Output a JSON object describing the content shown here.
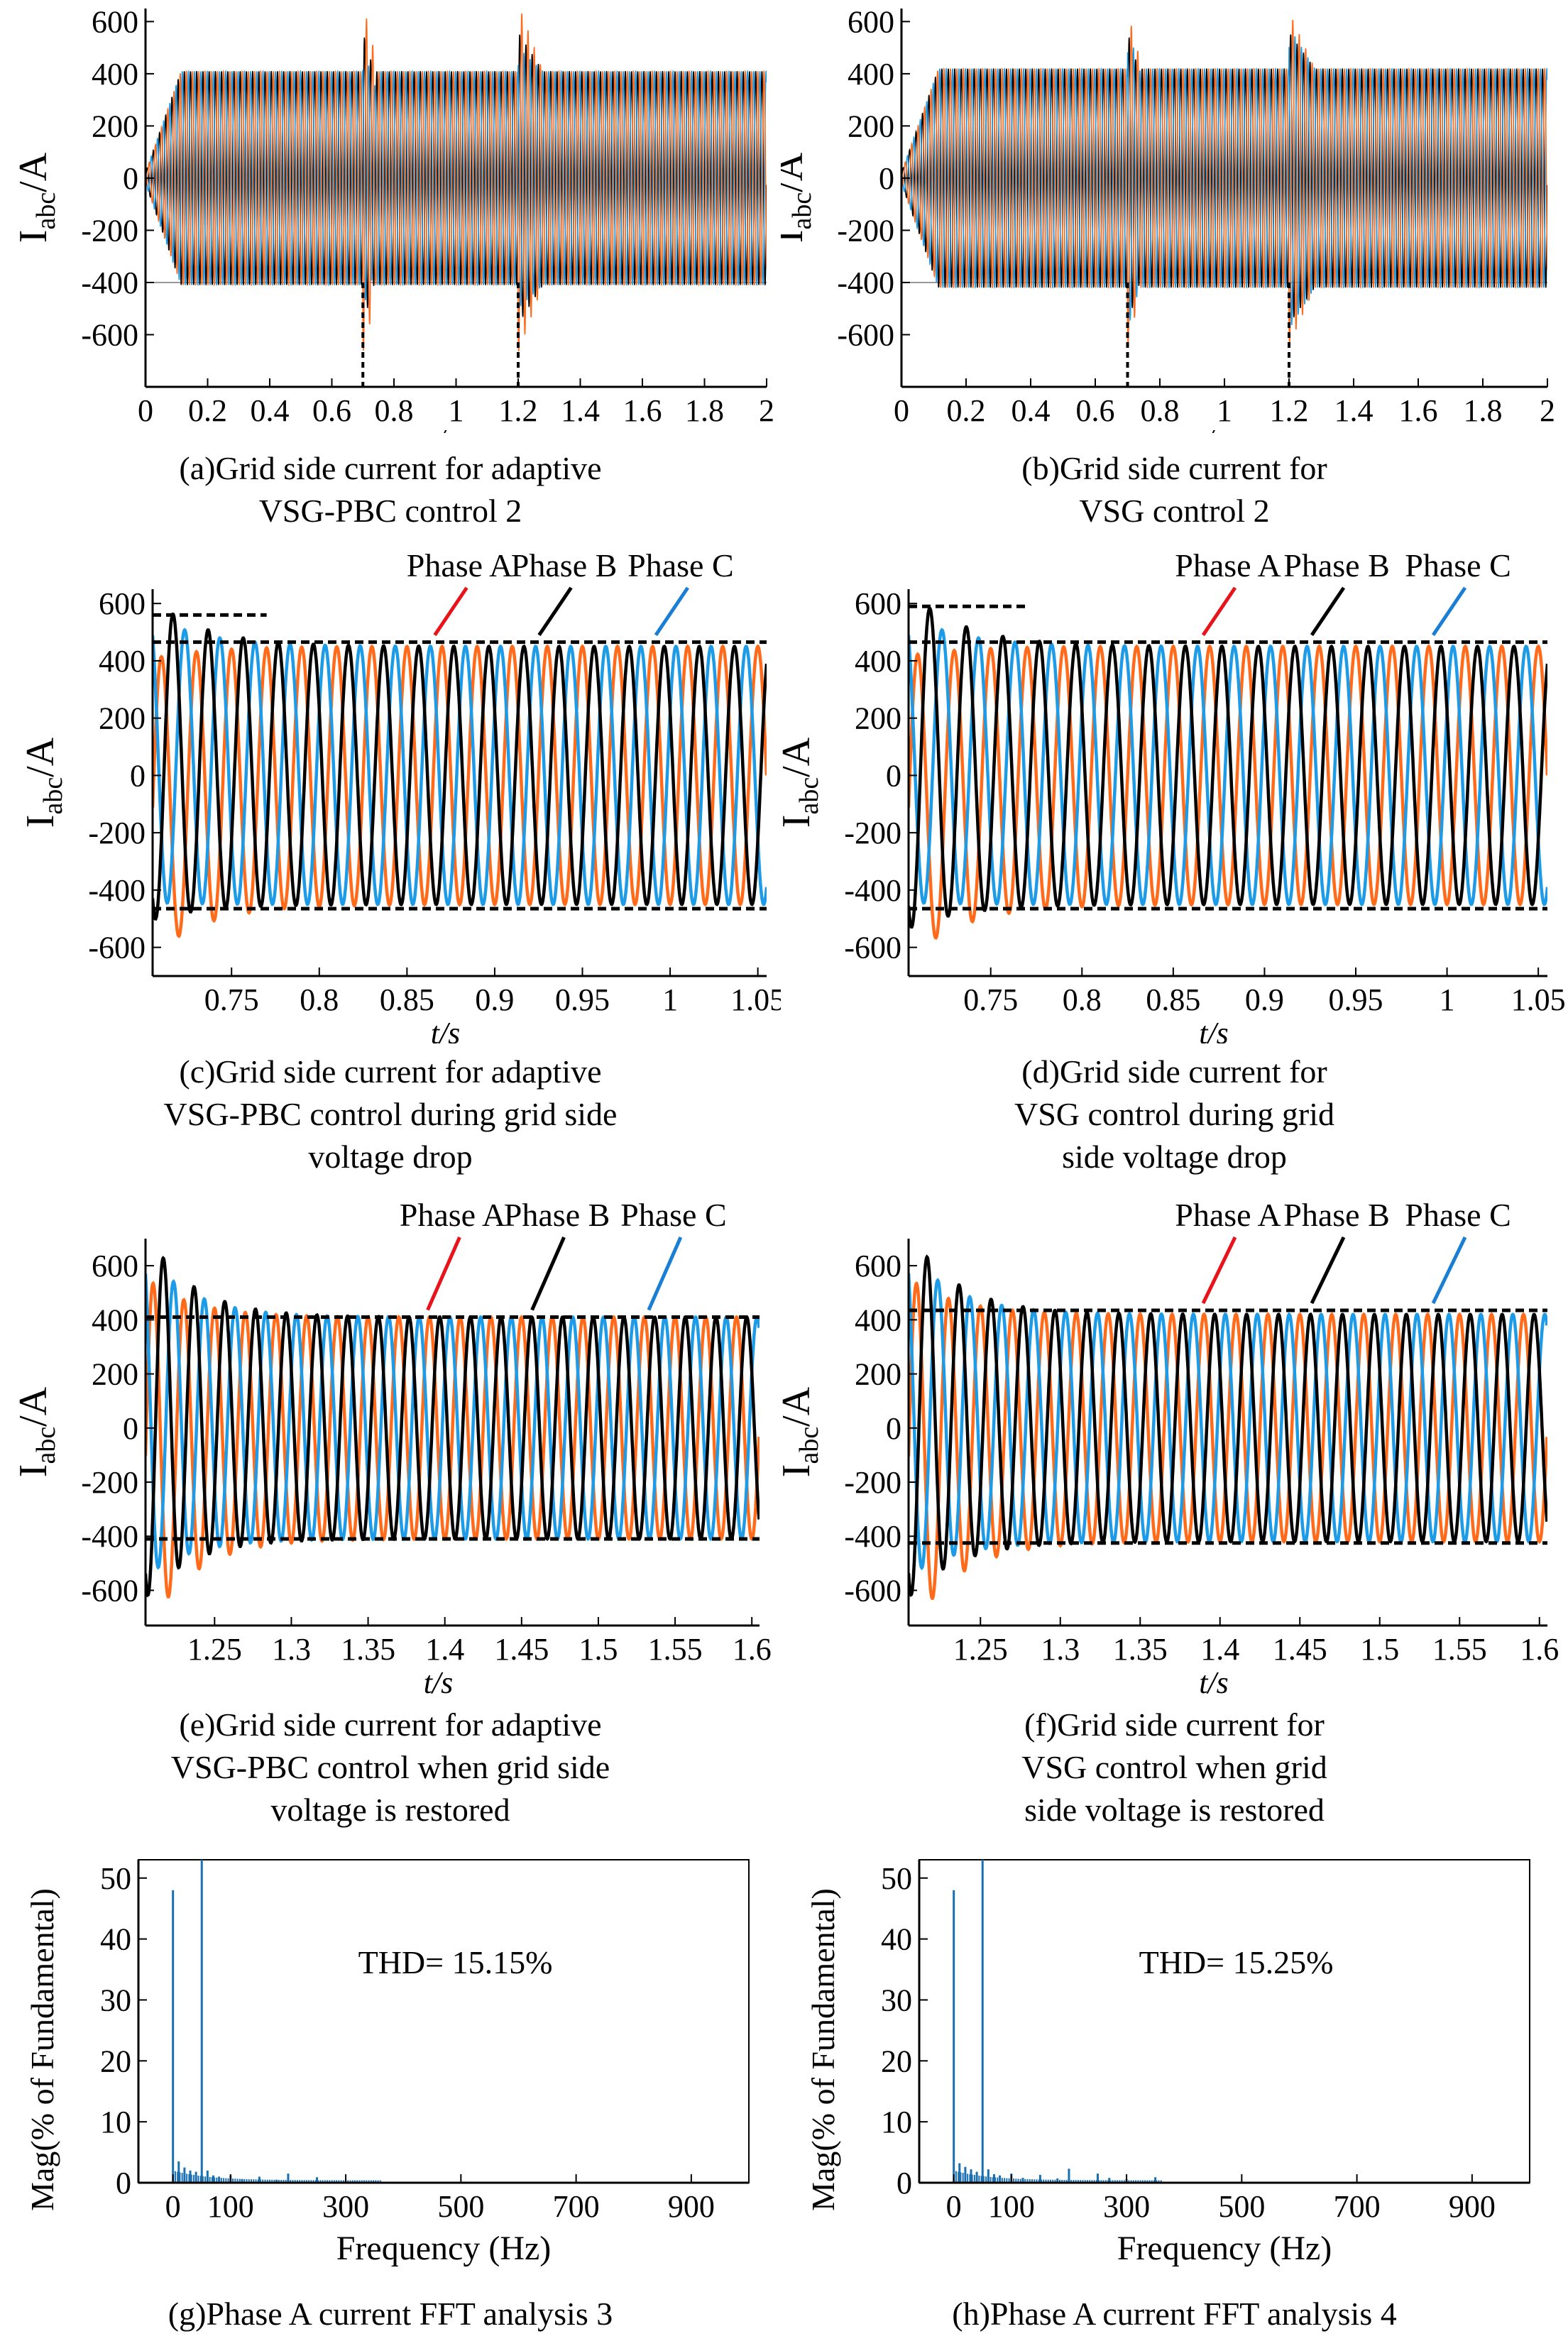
{
  "chart_data": [
    {
      "id": "a",
      "type": "line",
      "kind": "overview",
      "caption": [
        "(a)Grid side current for adaptive",
        "VSG-PBC control 2"
      ],
      "xlabel": "t/s",
      "ylabel": {
        "main": "I",
        "sub": "abc",
        "rest": "/A"
      },
      "xlim": [
        0,
        2
      ],
      "ylim": [
        -800,
        650
      ],
      "xticks": [
        0,
        0.2,
        0.4,
        0.6,
        0.8,
        1,
        1.2,
        1.4,
        1.6,
        1.8,
        2
      ],
      "xtick_labels": [
        "0",
        "0.2",
        "0.4",
        "0.6",
        "0.8",
        "1",
        "1.2",
        "1.4",
        "1.6",
        "1.8",
        "2"
      ],
      "yticks": [
        -600,
        -400,
        -200,
        0,
        200,
        400,
        600
      ],
      "ytick_labels": [
        "-600",
        "-400",
        "-200",
        "0",
        "200",
        "400",
        "600"
      ],
      "series": [
        {
          "color": "#000000",
          "steady": 410,
          "peak": 560
        },
        {
          "color": "#1e9be6",
          "steady": 410,
          "peak": 500
        },
        {
          "color": "#ff6b1a",
          "steady": 410,
          "peak": 670
        }
      ],
      "events": [
        0.7,
        1.2
      ]
    },
    {
      "id": "b",
      "type": "line",
      "kind": "overview",
      "caption": [
        "(b)Grid side current for",
        "VSG control 2"
      ],
      "xlabel": "t/s",
      "ylabel": {
        "main": "I",
        "sub": "abc",
        "rest": "/A"
      },
      "xlim": [
        0,
        2
      ],
      "ylim": [
        -800,
        650
      ],
      "xticks": [
        0,
        0.2,
        0.4,
        0.6,
        0.8,
        1,
        1.2,
        1.4,
        1.6,
        1.8,
        2
      ],
      "xtick_labels": [
        "0",
        "0.2",
        "0.4",
        "0.6",
        "0.8",
        "1",
        "1.2",
        "1.4",
        "1.6",
        "1.8",
        "2"
      ],
      "yticks": [
        -600,
        -400,
        -200,
        0,
        200,
        400,
        600
      ],
      "ytick_labels": [
        "-600",
        "-400",
        "-200",
        "0",
        "200",
        "400",
        "600"
      ],
      "series": [
        {
          "color": "#000000",
          "steady": 420,
          "peak": 560
        },
        {
          "color": "#1e9be6",
          "steady": 420,
          "peak": 580
        },
        {
          "color": "#ff6b1a",
          "steady": 420,
          "peak": 640
        }
      ],
      "events": [
        0.7,
        1.2
      ]
    },
    {
      "id": "c",
      "type": "line",
      "kind": "zoom",
      "caption": [
        "(c)Grid side current for adaptive",
        "VSG-PBC control during grid side",
        "voltage drop"
      ],
      "xlabel": "t/s",
      "ylabel": {
        "main": "I",
        "sub": "abc",
        "rest": "/A"
      },
      "xlim": [
        0.705,
        1.055
      ],
      "ylim": [
        -700,
        650
      ],
      "xticks": [
        0.75,
        0.8,
        0.85,
        0.9,
        0.95,
        1,
        1.05
      ],
      "xtick_labels": [
        "0.75",
        "0.8",
        "0.85",
        "0.9",
        "0.95",
        "1",
        "1.05"
      ],
      "yticks": [
        -600,
        -400,
        -200,
        0,
        200,
        400,
        600
      ],
      "ytick_labels": [
        "-600",
        "-400",
        "-200",
        "0",
        "200",
        "400",
        "600"
      ],
      "series": [
        {
          "name": "Phase A",
          "color": "#ff6b1a",
          "amplitude": 450,
          "transient": 520,
          "phase_deg": 0
        },
        {
          "name": "Phase B",
          "color": "#000000",
          "amplitude": 450,
          "transient": 560,
          "phase_deg": -120
        },
        {
          "name": "Phase C",
          "color": "#1e9be6",
          "amplitude": 450,
          "transient": 500,
          "phase_deg": 120
        }
      ],
      "frequency_hz": 50,
      "reference_lines": [
        465,
        -465
      ],
      "short_line": {
        "y": 560,
        "x": [
          0.705,
          0.77
        ]
      },
      "legend_labels": [
        "Phase A",
        "Phase B",
        "Phase C"
      ],
      "legend_arrow_colors": [
        "#e8141c",
        "#000000",
        "#1a7fd4"
      ]
    },
    {
      "id": "d",
      "type": "line",
      "kind": "zoom",
      "caption": [
        "(d)Grid side current for",
        "VSG control during grid",
        "side voltage drop"
      ],
      "xlabel": "t/s",
      "ylabel": {
        "main": "I",
        "sub": "abc",
        "rest": "/A"
      },
      "xlim": [
        0.705,
        1.055
      ],
      "ylim": [
        -700,
        650
      ],
      "xticks": [
        0.75,
        0.8,
        0.85,
        0.9,
        0.95,
        1,
        1.05
      ],
      "xtick_labels": [
        "0.75",
        "0.8",
        "0.85",
        "0.9",
        "0.95",
        "1",
        "1.05"
      ],
      "yticks": [
        -600,
        -400,
        -200,
        0,
        200,
        400,
        600
      ],
      "ytick_labels": [
        "-600",
        "-400",
        "-200",
        "0",
        "200",
        "400",
        "600"
      ],
      "series": [
        {
          "name": "Phase A",
          "color": "#ff6b1a",
          "amplitude": 450,
          "transient": 530,
          "phase_deg": 0
        },
        {
          "name": "Phase B",
          "color": "#000000",
          "amplitude": 450,
          "transient": 590,
          "phase_deg": -120
        },
        {
          "name": "Phase C",
          "color": "#1e9be6",
          "amplitude": 450,
          "transient": 500,
          "phase_deg": 120
        }
      ],
      "frequency_hz": 50,
      "reference_lines": [
        465,
        -465
      ],
      "short_line": {
        "y": 590,
        "x": [
          0.705,
          0.77
        ]
      },
      "legend_labels": [
        "Phase A",
        "Phase B",
        "Phase C"
      ],
      "legend_arrow_colors": [
        "#e8141c",
        "#000000",
        "#1a7fd4"
      ]
    },
    {
      "id": "e",
      "type": "line",
      "kind": "zoom",
      "caption": [
        "(e)Grid side current for adaptive",
        "VSG-PBC control when grid side",
        "voltage is restored"
      ],
      "xlabel": "t/s",
      "ylabel": {
        "main": "I",
        "sub": "abc",
        "rest": "/A"
      },
      "xlim": [
        1.205,
        1.605
      ],
      "ylim": [
        -730,
        700
      ],
      "xticks": [
        1.25,
        1.3,
        1.35,
        1.4,
        1.45,
        1.5,
        1.55,
        1.6
      ],
      "xtick_labels": [
        "1.25",
        "1.3",
        "1.35",
        "1.4",
        "1.45",
        "1.5",
        "1.55",
        "1.6"
      ],
      "yticks": [
        -600,
        -400,
        -200,
        0,
        200,
        400,
        600
      ],
      "ytick_labels": [
        "-600",
        "-400",
        "-200",
        "0",
        "200",
        "400",
        "600"
      ],
      "series": [
        {
          "name": "Phase A",
          "color": "#ff6b1a",
          "amplitude": 410,
          "transient": 660,
          "phase_deg": 0
        },
        {
          "name": "Phase B",
          "color": "#000000",
          "amplitude": 410,
          "transient": 680,
          "phase_deg": -120
        },
        {
          "name": "Phase C",
          "color": "#1e9be6",
          "amplitude": 410,
          "transient": 600,
          "phase_deg": 120
        }
      ],
      "frequency_hz": 50,
      "reference_lines": [
        410,
        -410
      ],
      "legend_labels": [
        "Phase A",
        "Phase B",
        "Phase C"
      ],
      "legend_arrow_colors": [
        "#e8141c",
        "#000000",
        "#1a7fd4"
      ]
    },
    {
      "id": "f",
      "type": "line",
      "kind": "zoom",
      "caption": [
        "(f)Grid side current for",
        "VSG control when grid",
        "side voltage is restored"
      ],
      "xlabel": "t/s",
      "ylabel": {
        "main": "I",
        "sub": "abc",
        "rest": "/A"
      },
      "xlim": [
        1.205,
        1.605
      ],
      "ylim": [
        -730,
        700
      ],
      "xticks": [
        1.25,
        1.3,
        1.35,
        1.4,
        1.45,
        1.5,
        1.55,
        1.6
      ],
      "xtick_labels": [
        "1.25",
        "1.3",
        "1.35",
        "1.4",
        "1.45",
        "1.5",
        "1.55",
        "1.6"
      ],
      "yticks": [
        -600,
        -400,
        -200,
        0,
        200,
        400,
        600
      ],
      "ytick_labels": [
        "-600",
        "-400",
        "-200",
        "0",
        "200",
        "400",
        "600"
      ],
      "series": [
        {
          "name": "Phase A",
          "color": "#ff6b1a",
          "amplitude": 420,
          "transient": 660,
          "phase_deg": 0
        },
        {
          "name": "Phase B",
          "color": "#000000",
          "amplitude": 420,
          "transient": 680,
          "phase_deg": -120
        },
        {
          "name": "Phase C",
          "color": "#1e9be6",
          "amplitude": 420,
          "transient": 600,
          "phase_deg": 120
        }
      ],
      "frequency_hz": 50,
      "reference_lines": [
        435,
        -425
      ],
      "legend_labels": [
        "Phase A",
        "Phase B",
        "Phase C"
      ],
      "legend_arrow_colors": [
        "#e8141c",
        "#000000",
        "#1a7fd4"
      ]
    },
    {
      "id": "g",
      "type": "bar",
      "kind": "fft",
      "caption": [
        "(g)Phase A current FFT analysis 3"
      ],
      "xlabel": "Frequency (Hz)",
      "ylabel": "Mag(% of Fundamental)",
      "xlim": [
        -60,
        1000
      ],
      "ylim": [
        0,
        53
      ],
      "xticks": [
        0,
        100,
        300,
        500,
        700,
        900
      ],
      "xtick_labels": [
        "0",
        "100",
        "300",
        "500",
        "700",
        "900"
      ],
      "yticks": [
        0,
        10,
        20,
        30,
        40,
        50
      ],
      "ytick_labels": [
        "0",
        "10",
        "20",
        "30",
        "40",
        "50"
      ],
      "annotation": "THD= 15.15%",
      "color": "#1a6fb0",
      "spectrum": [
        {
          "f": 0,
          "mag": 48
        },
        {
          "f": 10,
          "mag": 3.5
        },
        {
          "f": 20,
          "mag": 2.5
        },
        {
          "f": 30,
          "mag": 2
        },
        {
          "f": 40,
          "mag": 1.8
        },
        {
          "f": 50,
          "mag": 100
        },
        {
          "f": 60,
          "mag": 2
        },
        {
          "f": 70,
          "mag": 1.2
        },
        {
          "f": 80,
          "mag": 1
        },
        {
          "f": 100,
          "mag": 1.2
        },
        {
          "f": 120,
          "mag": 0.6
        },
        {
          "f": 150,
          "mag": 1
        },
        {
          "f": 180,
          "mag": 0.5
        },
        {
          "f": 200,
          "mag": 1.5
        },
        {
          "f": 250,
          "mag": 0.9
        },
        {
          "f": 300,
          "mag": 0.3
        },
        {
          "f": 350,
          "mag": 0.2
        }
      ]
    },
    {
      "id": "h",
      "type": "bar",
      "kind": "fft",
      "caption": [
        "(h)Phase A current FFT analysis 4"
      ],
      "xlabel": "Frequency (Hz)",
      "ylabel": "Mag(% of Fundamental)",
      "xlim": [
        -60,
        1000
      ],
      "ylim": [
        0,
        53
      ],
      "xticks": [
        0,
        100,
        300,
        500,
        700,
        900
      ],
      "xtick_labels": [
        "0",
        "100",
        "300",
        "500",
        "700",
        "900"
      ],
      "yticks": [
        0,
        10,
        20,
        30,
        40,
        50
      ],
      "ytick_labels": [
        "0",
        "10",
        "20",
        "30",
        "40",
        "50"
      ],
      "annotation": "THD= 15.25%",
      "color": "#1a6fb0",
      "spectrum": [
        {
          "f": 0,
          "mag": 48
        },
        {
          "f": 10,
          "mag": 3.2
        },
        {
          "f": 20,
          "mag": 2.6
        },
        {
          "f": 30,
          "mag": 2.2
        },
        {
          "f": 40,
          "mag": 1.8
        },
        {
          "f": 50,
          "mag": 100
        },
        {
          "f": 60,
          "mag": 2.2
        },
        {
          "f": 70,
          "mag": 1.4
        },
        {
          "f": 80,
          "mag": 1.2
        },
        {
          "f": 100,
          "mag": 1.5
        },
        {
          "f": 120,
          "mag": 0.8
        },
        {
          "f": 150,
          "mag": 1.3
        },
        {
          "f": 180,
          "mag": 0.7
        },
        {
          "f": 200,
          "mag": 2.3
        },
        {
          "f": 250,
          "mag": 1.5
        },
        {
          "f": 270,
          "mag": 0.8
        },
        {
          "f": 300,
          "mag": 0.6
        },
        {
          "f": 350,
          "mag": 0.9
        }
      ]
    }
  ]
}
